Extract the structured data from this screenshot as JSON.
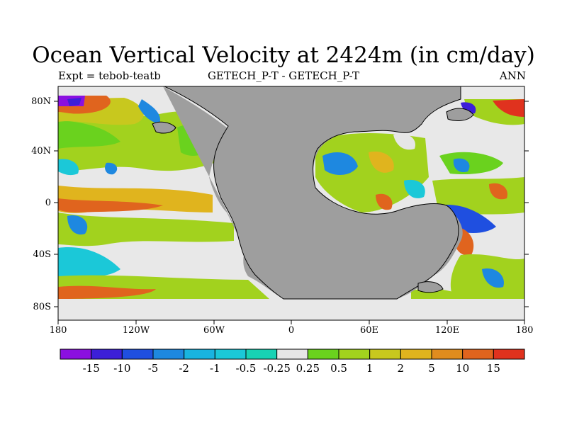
{
  "title": "Ocean Vertical Velocity at 2424m (in cm/day)",
  "subtitle_left": "Expt = tebob-teatb",
  "subtitle_center": "GETECH_P-T - GETECH_P-T",
  "subtitle_right": "ANN",
  "y_ticks": [
    "80N",
    "40N",
    "0",
    "40S",
    "80S"
  ],
  "x_ticks": [
    "180",
    "120W",
    "60W",
    "0",
    "60E",
    "120E",
    "180"
  ],
  "colorbar": {
    "labels": [
      "-15",
      "-10",
      "-5",
      "-2",
      "-1",
      "-0.5",
      "-0.25",
      "0.25",
      "0.5",
      "1",
      "2",
      "5",
      "10",
      "15"
    ],
    "colors": [
      "#8b10e0",
      "#3c1fd8",
      "#1f4fe0",
      "#1e88e0",
      "#19b4e0",
      "#1bc8d8",
      "#18d2b4",
      "#e6e6e6",
      "#6ad21e",
      "#a2d21e",
      "#c8c81e",
      "#e0b41e",
      "#e08c1e",
      "#e0641e",
      "#e0321e"
    ]
  },
  "map_colors": {
    "land": "#9e9e9e",
    "neutral": "#e8e8e8",
    "coastline": "#000000"
  }
}
